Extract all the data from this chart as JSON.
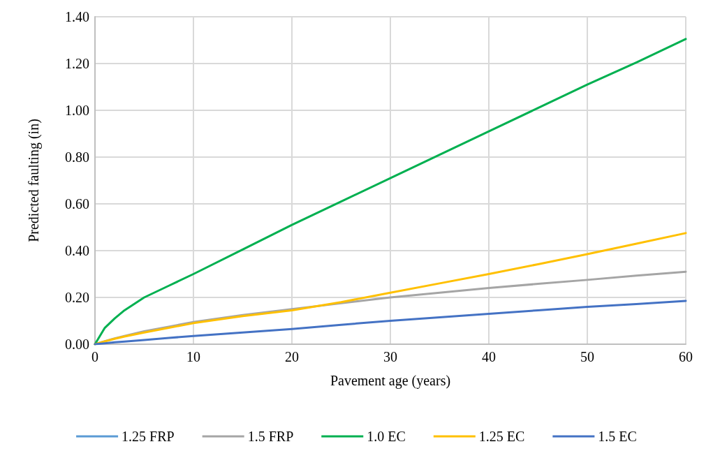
{
  "chart_data": {
    "type": "line",
    "xlabel": "Pavement age (years)",
    "ylabel": "Predicted faulting (in)",
    "x": [
      0,
      1,
      2,
      3,
      5,
      7.5,
      10,
      15,
      20,
      25,
      30,
      35,
      40,
      45,
      50,
      55,
      60
    ],
    "xlim": [
      0,
      60
    ],
    "xticks": [
      0,
      10,
      20,
      30,
      40,
      50,
      60
    ],
    "ylim": [
      0,
      1.4
    ],
    "yticks": [
      {
        "value": 0,
        "label": "0.00"
      },
      {
        "value": 0.2,
        "label": "0.20"
      },
      {
        "value": 0.4,
        "label": "0.40"
      },
      {
        "value": 0.6,
        "label": "0.60"
      },
      {
        "value": 0.8,
        "label": "0.80"
      },
      {
        "value": 1,
        "label": "1.00"
      },
      {
        "value": 1.2,
        "label": "1.20"
      },
      {
        "value": 1.4,
        "label": "1.40"
      }
    ],
    "grid": true,
    "legend": "bottom",
    "marker": "none",
    "line_style": "solid",
    "series": [
      {
        "name": "1.25 FRP",
        "color": "#5b9bd5",
        "values": [
          null,
          null,
          null,
          null,
          null,
          null,
          null,
          null,
          null,
          null,
          null,
          null,
          null,
          null,
          null,
          null,
          null
        ]
      },
      {
        "name": "1.5 FRP",
        "color": "#a5a5a5",
        "values": [
          0,
          0.013,
          0.025,
          0.035,
          0.055,
          0.075,
          0.095,
          0.125,
          0.15,
          0.175,
          0.2,
          0.22,
          0.24,
          0.258,
          0.275,
          0.293,
          0.31
        ]
      },
      {
        "name": "1.0 EC",
        "color": "#00b050",
        "values": [
          0,
          0.07,
          0.11,
          0.145,
          0.2,
          0.25,
          0.3,
          0.405,
          0.51,
          0.61,
          0.71,
          0.81,
          0.91,
          1.01,
          1.11,
          1.205,
          1.305
        ]
      },
      {
        "name": "1.25 EC",
        "color": "#ffc000",
        "values": [
          0,
          0.012,
          0.023,
          0.033,
          0.05,
          0.07,
          0.09,
          0.12,
          0.145,
          0.18,
          0.22,
          0.26,
          0.3,
          0.342,
          0.385,
          0.43,
          0.475
        ]
      },
      {
        "name": "1.5 EC",
        "color": "#4472c4",
        "values": [
          0,
          0.004,
          0.008,
          0.011,
          0.018,
          0.027,
          0.035,
          0.05,
          0.065,
          0.083,
          0.1,
          0.115,
          0.13,
          0.145,
          0.16,
          0.172,
          0.185
        ]
      }
    ]
  }
}
